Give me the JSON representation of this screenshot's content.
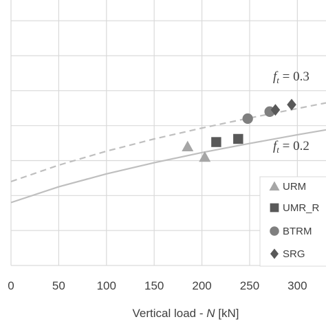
{
  "chart_data": {
    "type": "scatter",
    "xlabel": {
      "prefix": "Vertical load - ",
      "var": "N",
      "suffix": " [kN]"
    },
    "ylabel": "",
    "x_ticks": [
      "0",
      "50",
      "100",
      "150",
      "200",
      "250",
      "300"
    ],
    "xlim": [
      0,
      330
    ],
    "ylim": [
      0,
      7.2
    ],
    "y_gridlines": [
      0,
      1,
      2,
      3,
      4,
      5,
      6,
      7
    ],
    "grid": true,
    "legend": {
      "placement": "bottom-right",
      "entries": [
        {
          "label": "URM",
          "marker": "triangle",
          "color": "#a6a6a6"
        },
        {
          "label": "UMR_R",
          "marker": "square",
          "color": "#595959"
        },
        {
          "label": "BTRM",
          "marker": "circle",
          "color": "#7f7f7f"
        },
        {
          "label": "SRG",
          "marker": "diamond",
          "color": "#595959"
        }
      ]
    },
    "series": [
      {
        "name": "URM",
        "marker": "triangle",
        "color": "#a6a6a6",
        "points": [
          [
            185,
            3.4
          ],
          [
            203,
            3.1
          ]
        ]
      },
      {
        "name": "UMR_R",
        "marker": "square",
        "color": "#595959",
        "points": [
          [
            215,
            3.53
          ],
          [
            238,
            3.62
          ]
        ]
      },
      {
        "name": "BTRM",
        "marker": "circle",
        "color": "#7f7f7f",
        "points": [
          [
            248,
            4.2
          ],
          [
            271,
            4.4
          ]
        ]
      },
      {
        "name": "SRG",
        "marker": "diamond",
        "color": "#595959",
        "points": [
          [
            277,
            4.45
          ],
          [
            294,
            4.6
          ]
        ]
      }
    ],
    "curves": [
      {
        "label_var": "f",
        "label_sub": "t",
        "label_text": " = 0.3",
        "style": "dashed",
        "color": "#bfbfbf",
        "points": [
          [
            0,
            2.4
          ],
          [
            50,
            2.87
          ],
          [
            100,
            3.27
          ],
          [
            150,
            3.62
          ],
          [
            200,
            3.93
          ],
          [
            250,
            4.22
          ],
          [
            300,
            4.49
          ],
          [
            330,
            4.65
          ]
        ]
      },
      {
        "label_var": "f",
        "label_sub": "t",
        "label_text": " = 0.2",
        "style": "solid",
        "color": "#bfbfbf",
        "points": [
          [
            0,
            1.8
          ],
          [
            50,
            2.25
          ],
          [
            100,
            2.62
          ],
          [
            150,
            2.94
          ],
          [
            200,
            3.23
          ],
          [
            250,
            3.49
          ],
          [
            300,
            3.74
          ],
          [
            330,
            3.88
          ]
        ]
      }
    ]
  }
}
